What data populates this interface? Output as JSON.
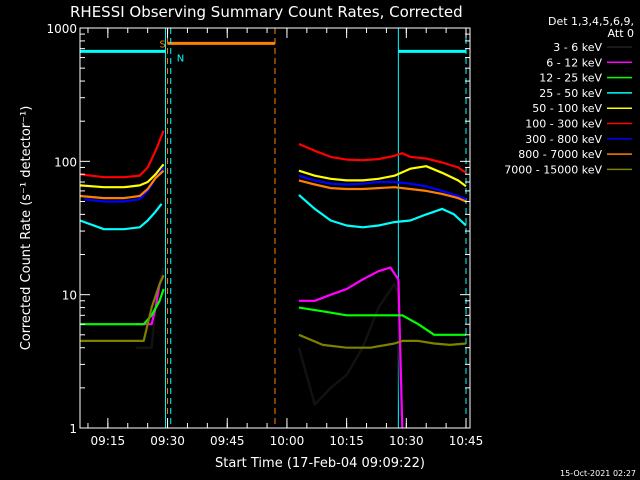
{
  "chart_data": {
    "type": "line",
    "title": "RHESSI Observing Summary Count Rates, Corrected",
    "xlabel": "Start Time (17-Feb-04 09:09:22)",
    "ylabel": "Corrected Count Rate (s⁻¹ detector⁻¹)",
    "yscale": "log",
    "ylim": [
      1,
      1000
    ],
    "xlim_minutes": [
      -1,
      97
    ],
    "x_ticks": [
      {
        "label": "09:15",
        "m": 6
      },
      {
        "label": "09:30",
        "m": 21
      },
      {
        "label": "09:45",
        "m": 36
      },
      {
        "label": "10:00",
        "m": 51
      },
      {
        "label": "10:15",
        "m": 66
      },
      {
        "label": "10:30",
        "m": 81
      },
      {
        "label": "10:45",
        "m": 96
      }
    ],
    "y_ticks": [
      {
        "label": "1",
        "v": 1
      },
      {
        "label": "10",
        "v": 10
      },
      {
        "label": "100",
        "v": 100
      },
      {
        "label": "1000",
        "v": 1000
      }
    ],
    "legend_header": [
      "Det 1,3,4,5,6,9,",
      "Att 0"
    ],
    "footer_date": "15-Oct-2021 02:27",
    "flags": {
      "saa_label": "S",
      "night_label": "N",
      "saa": {
        "start": 21,
        "end": 48
      },
      "night_bars": [
        {
          "start": -1,
          "end": 20.5
        },
        {
          "start": 79,
          "end": 96
        }
      ],
      "level": 680
    },
    "gap": [
      48,
      54
    ],
    "series": [
      {
        "name": "3 - 6 keV",
        "color": "#000000",
        "pre": [
          [
            13,
            4
          ],
          [
            17,
            4
          ],
          [
            18,
            8
          ],
          [
            19,
            12
          ],
          [
            20,
            16
          ]
        ],
        "post": [
          [
            54,
            4
          ],
          [
            58,
            1.5
          ],
          [
            62,
            2
          ],
          [
            66,
            2.5
          ],
          [
            70,
            4
          ],
          [
            74,
            8
          ],
          [
            78,
            12
          ],
          [
            79,
            10
          ],
          [
            79.5,
            1.2
          ]
        ]
      },
      {
        "name": "6 - 12 keV",
        "color": "#ff00ff",
        "pre": [
          [
            13,
            6
          ],
          [
            17,
            6
          ],
          [
            18,
            8
          ],
          [
            19,
            12
          ],
          [
            20,
            14
          ]
        ],
        "post": [
          [
            54,
            9
          ],
          [
            58,
            9
          ],
          [
            62,
            10
          ],
          [
            66,
            11
          ],
          [
            70,
            13
          ],
          [
            74,
            15
          ],
          [
            77,
            16
          ],
          [
            79,
            13
          ],
          [
            80,
            1
          ]
        ]
      },
      {
        "name": "12 - 25 keV",
        "color": "#00ff00",
        "pre": [
          [
            -1,
            6
          ],
          [
            5,
            6
          ],
          [
            10,
            6
          ],
          [
            13,
            6
          ],
          [
            15,
            6
          ],
          [
            17,
            7
          ],
          [
            19,
            9
          ],
          [
            20,
            11
          ]
        ],
        "post": [
          [
            54,
            8
          ],
          [
            60,
            7.5
          ],
          [
            66,
            7
          ],
          [
            72,
            7
          ],
          [
            78,
            7
          ],
          [
            80,
            7
          ],
          [
            84,
            6
          ],
          [
            88,
            5
          ],
          [
            92,
            5
          ],
          [
            96,
            5
          ]
        ]
      },
      {
        "name": "25 - 50 keV",
        "color": "#00ffff",
        "pre": [
          [
            -1,
            36
          ],
          [
            5,
            31
          ],
          [
            10,
            31
          ],
          [
            14,
            32
          ],
          [
            16,
            36
          ],
          [
            18,
            42
          ],
          [
            19.5,
            48
          ]
        ],
        "post": [
          [
            54,
            56
          ],
          [
            58,
            44
          ],
          [
            62,
            36
          ],
          [
            66,
            33
          ],
          [
            70,
            32
          ],
          [
            74,
            33
          ],
          [
            78,
            35
          ],
          [
            82,
            36
          ],
          [
            86,
            40
          ],
          [
            90,
            44
          ],
          [
            93,
            40
          ],
          [
            96,
            33
          ]
        ]
      },
      {
        "name": "50 - 100 keV",
        "color": "#ffff00",
        "pre": [
          [
            -1,
            66
          ],
          [
            5,
            64
          ],
          [
            10,
            64
          ],
          [
            14,
            66
          ],
          [
            16,
            70
          ],
          [
            18,
            80
          ],
          [
            20,
            95
          ]
        ],
        "post": [
          [
            54,
            85
          ],
          [
            58,
            78
          ],
          [
            62,
            74
          ],
          [
            66,
            72
          ],
          [
            70,
            72
          ],
          [
            74,
            74
          ],
          [
            78,
            78
          ],
          [
            82,
            88
          ],
          [
            86,
            92
          ],
          [
            90,
            82
          ],
          [
            94,
            72
          ],
          [
            96,
            65
          ]
        ]
      },
      {
        "name": "100 - 300 keV",
        "color": "#ff0000",
        "pre": [
          [
            -1,
            80
          ],
          [
            5,
            76
          ],
          [
            10,
            76
          ],
          [
            14,
            78
          ],
          [
            16,
            90
          ],
          [
            18,
            120
          ],
          [
            20,
            170
          ]
        ],
        "post": [
          [
            54,
            135
          ],
          [
            58,
            120
          ],
          [
            62,
            108
          ],
          [
            66,
            103
          ],
          [
            70,
            102
          ],
          [
            74,
            104
          ],
          [
            78,
            110
          ],
          [
            80,
            115
          ],
          [
            82,
            108
          ],
          [
            86,
            105
          ],
          [
            90,
            98
          ],
          [
            94,
            90
          ],
          [
            96,
            82
          ]
        ]
      },
      {
        "name": "300 - 800 keV",
        "color": "#0000ff",
        "pre": [
          [
            0,
            52
          ],
          [
            5,
            50
          ],
          [
            10,
            50
          ],
          [
            14,
            52
          ],
          [
            16,
            60
          ],
          [
            18,
            75
          ],
          [
            20,
            90
          ]
        ],
        "post": [
          [
            54,
            78
          ],
          [
            58,
            72
          ],
          [
            62,
            68
          ],
          [
            66,
            67
          ],
          [
            70,
            68
          ],
          [
            74,
            70
          ],
          [
            78,
            70
          ],
          [
            82,
            68
          ],
          [
            86,
            65
          ],
          [
            90,
            60
          ],
          [
            94,
            55
          ],
          [
            96,
            52
          ]
        ]
      },
      {
        "name": "800 - 7000 keV",
        "color": "#ff8000",
        "pre": [
          [
            -1,
            55
          ],
          [
            5,
            53
          ],
          [
            10,
            53
          ],
          [
            14,
            55
          ],
          [
            16,
            62
          ],
          [
            18,
            75
          ],
          [
            20,
            85
          ]
        ],
        "post": [
          [
            54,
            72
          ],
          [
            58,
            67
          ],
          [
            62,
            63
          ],
          [
            66,
            62
          ],
          [
            70,
            62
          ],
          [
            74,
            63
          ],
          [
            78,
            64
          ],
          [
            82,
            62
          ],
          [
            86,
            60
          ],
          [
            90,
            57
          ],
          [
            94,
            53
          ],
          [
            96,
            50
          ]
        ]
      },
      {
        "name": "7000 - 15000 keV",
        "color": "#808000",
        "pre": [
          [
            -1,
            4.5
          ],
          [
            5,
            4.5
          ],
          [
            10,
            4.5
          ],
          [
            13,
            4.5
          ],
          [
            15,
            4.5
          ],
          [
            17,
            8
          ],
          [
            19,
            12
          ],
          [
            20,
            14
          ]
        ],
        "post": [
          [
            54,
            5
          ],
          [
            60,
            4.2
          ],
          [
            66,
            4
          ],
          [
            72,
            4
          ],
          [
            78,
            4.3
          ],
          [
            80,
            4.5
          ],
          [
            84,
            4.5
          ],
          [
            88,
            4.3
          ],
          [
            92,
            4.2
          ],
          [
            96,
            4.3
          ]
        ]
      }
    ]
  }
}
